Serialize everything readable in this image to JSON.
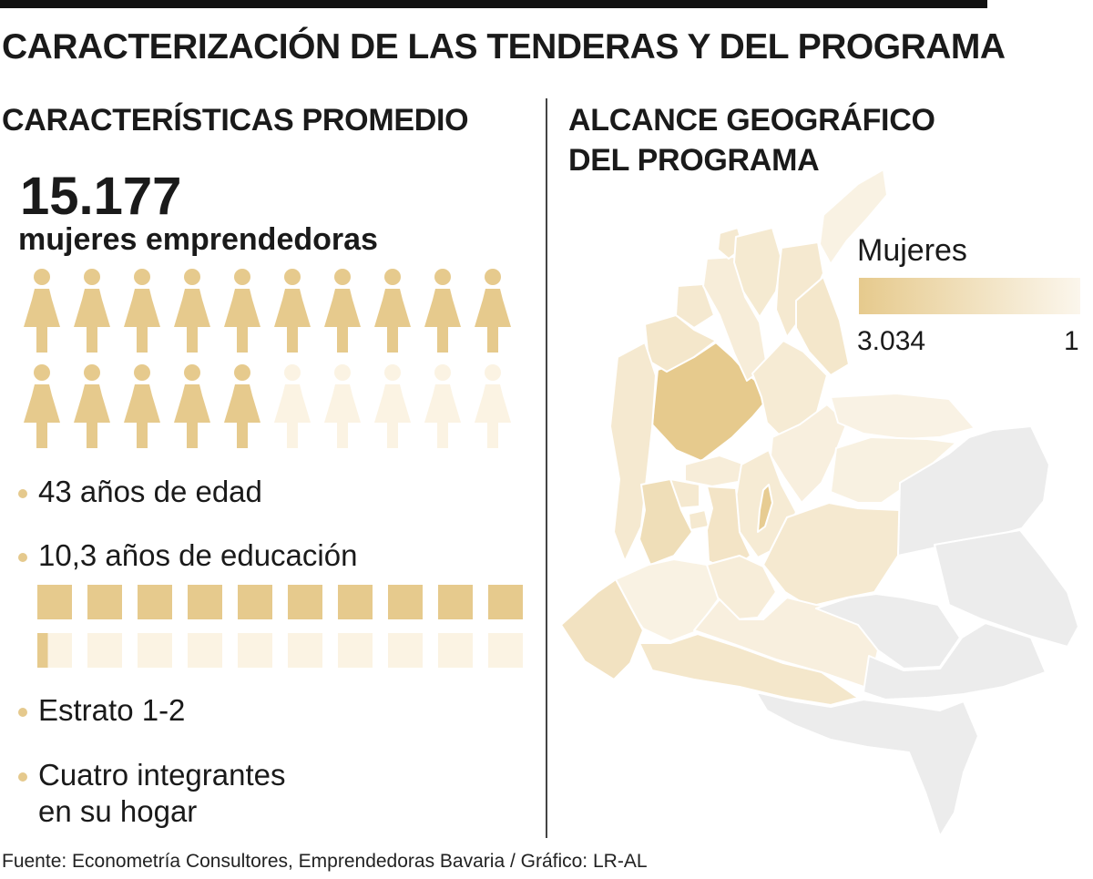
{
  "header": {
    "title": "CARACTERIZACIÓN DE LAS TENDERAS Y DEL PROGRAMA"
  },
  "left": {
    "section_title": "CARACTERÍSTICAS PROMEDIO",
    "total_women": "15.177",
    "total_label": "mujeres emprendedoras",
    "bullets": [
      "43 años de edad",
      "10,3 años de educación",
      "Estrato 1-2",
      "Cuatro integrantes en su hogar"
    ],
    "bullet_lines": {
      "hogar_1": "Cuatro integrantes",
      "hogar_2": "en su hogar"
    }
  },
  "right": {
    "section_title_1": "ALCANCE GEOGRÁFICO",
    "section_title_2": "DEL PROGRAMA",
    "legend": {
      "title": "Mujeres",
      "min_label": "3.034",
      "max_label": "1",
      "high_color": "#e6ca8d",
      "low_color": "#fbf6ec",
      "no_data_color": "#ececec"
    }
  },
  "source": "Fuente: Econometría Consultores, Emprendedoras Bavaria / Gráfico: LR-AL",
  "colors": {
    "accent": "#e6ca8d",
    "accent_light": "#fbf3e3",
    "text": "#1a1a1a"
  },
  "chart_data": [
    {
      "type": "pictogram",
      "title": "15.177 mujeres emprendedoras",
      "total_icons": 20,
      "filled_icons": 15,
      "icon": "woman-icon"
    },
    {
      "type": "bar",
      "title": "10,3 años de educación",
      "total_units": 20,
      "value": 10.3,
      "unit": "años"
    },
    {
      "type": "choropleth",
      "title": "ALCANCE GEOGRÁFICO DEL PROGRAMA",
      "region": "Colombia",
      "value_label": "Mujeres",
      "range": [
        1,
        3034
      ],
      "departments": [
        {
          "name": "Antioquia",
          "level": 1.0
        },
        {
          "name": "Córdoba",
          "level": 0.35
        },
        {
          "name": "Sucre",
          "level": 0.3
        },
        {
          "name": "Bolívar",
          "level": 0.2
        },
        {
          "name": "Atlántico",
          "level": 0.3
        },
        {
          "name": "Magdalena",
          "level": 0.28
        },
        {
          "name": "Cesar",
          "level": 0.3
        },
        {
          "name": "La Guajira",
          "level": 0.1
        },
        {
          "name": "Norte de Santander",
          "level": 0.35
        },
        {
          "name": "Santander",
          "level": 0.25
        },
        {
          "name": "Boyacá",
          "level": 0.15
        },
        {
          "name": "Arauca",
          "level": 0.08
        },
        {
          "name": "Casanare",
          "level": 0.12
        },
        {
          "name": "Caldas",
          "level": 0.2
        },
        {
          "name": "Risaralda",
          "level": 0.3
        },
        {
          "name": "Quindío",
          "level": 0.3
        },
        {
          "name": "Cundinamarca",
          "level": 0.25
        },
        {
          "name": "Bogotá",
          "level": 0.95
        },
        {
          "name": "Tolima",
          "level": 0.4
        },
        {
          "name": "Chocó",
          "level": 0.3
        },
        {
          "name": "Valle del Cauca",
          "level": 0.55
        },
        {
          "name": "Cauca",
          "level": 0.1
        },
        {
          "name": "Nariño",
          "level": 0.45
        },
        {
          "name": "Huila",
          "level": 0.2
        },
        {
          "name": "Meta",
          "level": 0.3
        },
        {
          "name": "Caquetá",
          "level": 0.15
        },
        {
          "name": "Putumayo",
          "level": 0.35
        },
        {
          "name": "Vichada",
          "level": null
        },
        {
          "name": "Guainía",
          "level": null
        },
        {
          "name": "Guaviare",
          "level": null
        },
        {
          "name": "Vaupés",
          "level": null
        },
        {
          "name": "Amazonas",
          "level": null
        }
      ]
    }
  ]
}
